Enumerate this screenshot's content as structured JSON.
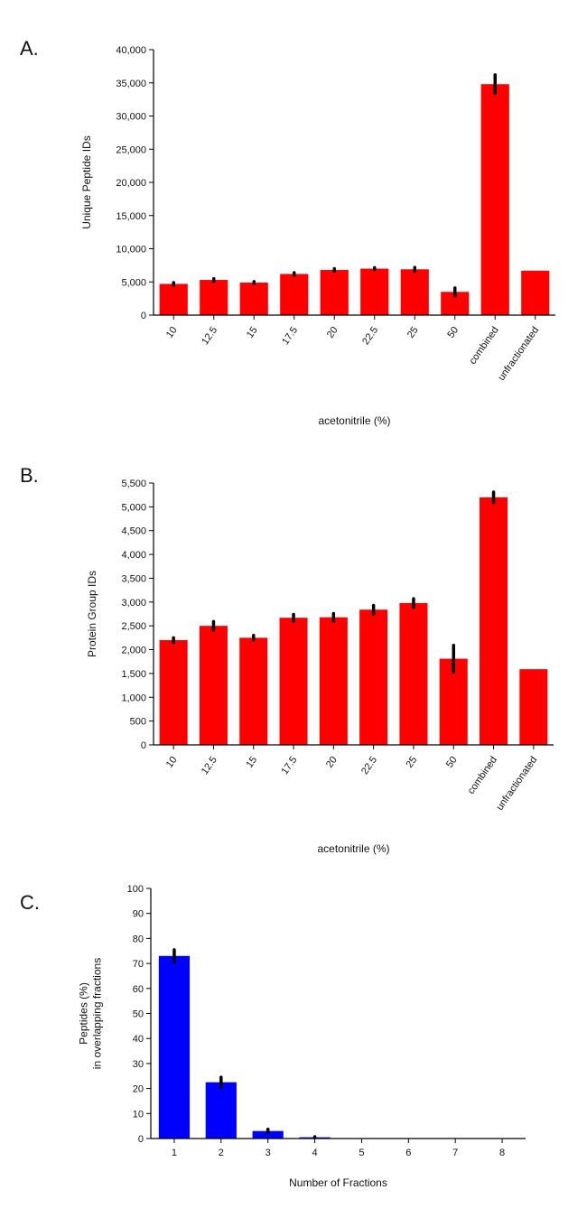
{
  "panels": [
    {
      "letter": "A."
    },
    {
      "letter": "B."
    },
    {
      "letter": "C."
    }
  ],
  "colors": {
    "red": "#ff0000",
    "blue": "#0000ff",
    "axis": "#000000"
  },
  "chart_data": [
    {
      "type": "bar",
      "categories": [
        "10",
        "12.5",
        "15",
        "17.5",
        "20",
        "22.5",
        "25",
        "50",
        "combined",
        "unfractionated"
      ],
      "values": [
        4700,
        5300,
        4900,
        6200,
        6800,
        7000,
        6900,
        3500,
        34800,
        6700
      ],
      "errors": [
        200,
        200,
        150,
        200,
        200,
        150,
        300,
        600,
        1400,
        0
      ],
      "xlabel": "acetonitrile (%)",
      "ylabel": "Unique Peptide IDs",
      "ylim": [
        0,
        40000
      ],
      "yticks": [
        "0",
        "5,000",
        "10,000",
        "15,000",
        "20,000",
        "25,000",
        "30,000",
        "35,000",
        "40,000"
      ],
      "ytick_values": [
        0,
        5000,
        10000,
        15000,
        20000,
        25000,
        30000,
        35000,
        40000
      ],
      "color": "red",
      "xlabel_rotation": "rotated"
    },
    {
      "type": "bar",
      "categories": [
        "10",
        "12.5",
        "15",
        "17.5",
        "20",
        "22.5",
        "25",
        "50",
        "combined",
        "unfractionated"
      ],
      "values": [
        2200,
        2500,
        2250,
        2670,
        2680,
        2840,
        2980,
        1810,
        5200,
        1590
      ],
      "errors": [
        50,
        90,
        50,
        70,
        80,
        90,
        90,
        280,
        110,
        0
      ],
      "xlabel": "acetonitrile (%)",
      "ylabel": "Protein Group IDs",
      "ylim": [
        0,
        5500
      ],
      "yticks": [
        "0",
        "500",
        "1,000",
        "1,500",
        "2,000",
        "2,500",
        "3,000",
        "3,500",
        "4,000",
        "4,500",
        "5,000",
        "5,500"
      ],
      "ytick_values": [
        0,
        500,
        1000,
        1500,
        2000,
        2500,
        3000,
        3500,
        4000,
        4500,
        5000,
        5500
      ],
      "color": "red",
      "xlabel_rotation": "rotated"
    },
    {
      "type": "bar",
      "categories": [
        "1",
        "2",
        "3",
        "4",
        "5",
        "6",
        "7",
        "8"
      ],
      "values": [
        73,
        22.5,
        3,
        0.5,
        0.1,
        0,
        0,
        0
      ],
      "errors": [
        2.5,
        2,
        0.7,
        0.2,
        0,
        0,
        0,
        0
      ],
      "xlabel": "Number of Fractions",
      "ylabel": [
        "Peptides (%)",
        "in overlapping fractions"
      ],
      "ylim": [
        0,
        100
      ],
      "yticks": [
        "0",
        "10",
        "20",
        "30",
        "40",
        "50",
        "60",
        "70",
        "80",
        "90",
        "100"
      ],
      "ytick_values": [
        0,
        10,
        20,
        30,
        40,
        50,
        60,
        70,
        80,
        90,
        100
      ],
      "color": "blue",
      "xlabel_rotation": "horizontal"
    }
  ]
}
